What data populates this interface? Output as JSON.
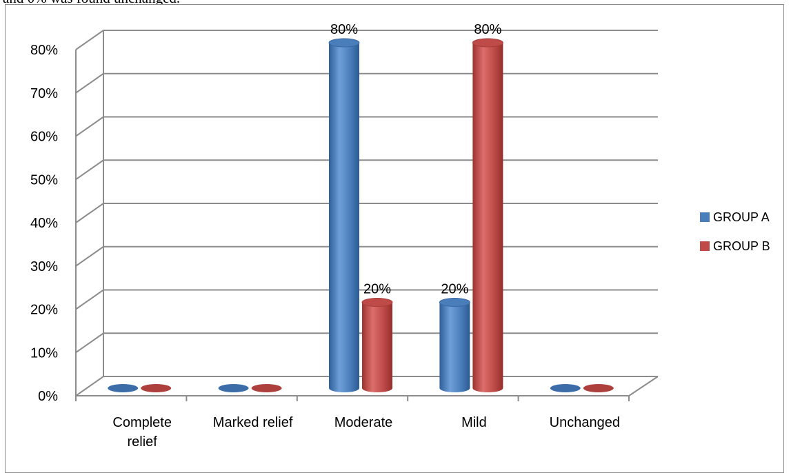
{
  "header_text": "and 0% was found unchanged.",
  "chart_data": {
    "type": "bar",
    "categories": [
      [
        "Complete",
        "relief"
      ],
      [
        "Marked relief"
      ],
      [
        "Moderate"
      ],
      [
        "Mild"
      ],
      [
        "Unchanged"
      ]
    ],
    "series": [
      {
        "name": "GROUP A",
        "values": [
          0,
          0,
          80,
          20,
          0
        ],
        "color": "#4a7ebb"
      },
      {
        "name": "GROUP B",
        "values": [
          0,
          0,
          20,
          80,
          0
        ],
        "color": "#be4b48"
      }
    ],
    "y_ticks": [
      "0%",
      "10%",
      "20%",
      "30%",
      "40%",
      "50%",
      "60%",
      "70%",
      "80%"
    ],
    "ylim": [
      0,
      80
    ],
    "data_labels": [
      {
        "series": 0,
        "index": 2,
        "text": "80%"
      },
      {
        "series": 1,
        "index": 2,
        "text": "20%"
      },
      {
        "series": 0,
        "index": 3,
        "text": "20%"
      },
      {
        "series": 1,
        "index": 3,
        "text": "80%"
      }
    ],
    "grid": true,
    "legend": "right",
    "title": "",
    "xlabel": "",
    "ylabel": ""
  }
}
